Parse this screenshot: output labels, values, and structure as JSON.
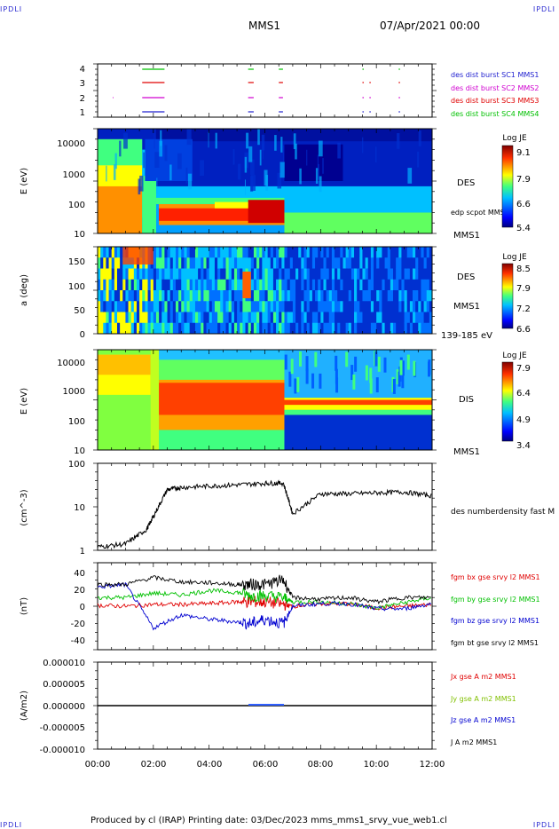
{
  "corners": {
    "tl": "IPDLI",
    "tr": "IPDLI",
    "bl": "IPDLI",
    "br": "IPDLI"
  },
  "header": {
    "spacecraft": "MMS1",
    "date": "07/Apr/2021 00:00"
  },
  "footer": "Produced by cl (IRAP)   Printing date: 03/Dec/2023   mms_mms1_srvy_vue_web1.cl",
  "colors": {
    "red": "#e00000",
    "green": "#00c000",
    "blue": "#0000d0",
    "magenta": "#d000d0",
    "black": "#000000"
  },
  "time_ticks": [
    "00:00",
    "02:00",
    "04:00",
    "06:00",
    "08:00",
    "10:00",
    "12:00"
  ],
  "panels": {
    "burst": {
      "yticks": [
        "4",
        "3",
        "2",
        "1"
      ],
      "legend": [
        {
          "text": "des dist burst SC1 MMS1",
          "color": "#2020d0"
        },
        {
          "text": "des dist burst SC2 MMS2",
          "color": "#d000d0"
        },
        {
          "text": "des dist burst SC3 MMS3",
          "color": "#e00000"
        },
        {
          "text": "des dist burst SC4 MMS4",
          "color": "#00c000"
        }
      ]
    },
    "des_energy": {
      "ylabel": "E (eV)",
      "yticks": [
        "10000",
        "1000",
        "100",
        "10"
      ],
      "label1": "DES",
      "label2": "edp scpot MMS1",
      "label3": "MMS1",
      "cbar_title": "Log JE",
      "cbar_ticks": [
        "9.1",
        "7.9",
        "6.6",
        "5.4"
      ]
    },
    "des_pitch": {
      "ylabel": "a (deg)",
      "yticks": [
        "150",
        "100",
        "50",
        "0"
      ],
      "label1": "DES",
      "label2": "MMS1",
      "label3": "139-185 eV",
      "cbar_title": "Log JE",
      "cbar_ticks": [
        "8.5",
        "7.9",
        "7.2",
        "6.6"
      ]
    },
    "dis_energy": {
      "ylabel": "E (eV)",
      "yticks": [
        "10000",
        "1000",
        "100",
        "10"
      ],
      "label1": "DIS",
      "label3": "MMS1",
      "cbar_title": "Log JE",
      "cbar_ticks": [
        "7.9",
        "6.4",
        "4.9",
        "3.4"
      ]
    },
    "density": {
      "ylabel": "(cm^-3)",
      "yticks": [
        "100",
        "10",
        "1"
      ],
      "label": "des numberdensity fast M"
    },
    "bfield": {
      "ylabel": "(nT)",
      "yticks": [
        "40",
        "20",
        "0",
        "-20",
        "-40"
      ],
      "legend": [
        {
          "text": "fgm bx gse srvy l2 MMS1",
          "color": "#e00000"
        },
        {
          "text": "fgm by gse srvy l2 MMS1",
          "color": "#00c000"
        },
        {
          "text": "fgm bz gse srvy l2 MMS1",
          "color": "#0000d0"
        },
        {
          "text": "fgm bt gse srvy l2 MMS1",
          "color": "#000000"
        }
      ]
    },
    "current": {
      "ylabel": "(A/m2)",
      "yticks": [
        "0.000010",
        "0.000005",
        "0.000000",
        "-0.000005",
        "-0.000010"
      ],
      "legend": [
        {
          "text": "Jx gse A m2 MMS1",
          "color": "#e00000"
        },
        {
          "text": "Jy gse A m2 MMS1",
          "color": "#80c000"
        },
        {
          "text": "Jz gse A m2 MMS1",
          "color": "#0000d0"
        },
        {
          "text": "J A m2 MMS1",
          "color": "#000000"
        }
      ]
    }
  },
  "chart_data": [
    {
      "type": "line",
      "title": "",
      "xlabel": "",
      "ylabel": "(cm^-3)",
      "yscale": "log",
      "ylim": [
        1,
        100
      ],
      "x": [
        "00:00",
        "01:00",
        "01:45",
        "02:00",
        "02:30",
        "03:00",
        "04:00",
        "05:00",
        "06:00",
        "06:40",
        "07:00",
        "08:00",
        "09:00",
        "10:00",
        "11:00",
        "12:00"
      ],
      "series": [
        {
          "name": "des numberdensity fast M",
          "values": [
            1.2,
            1.4,
            3,
            6,
            25,
            28,
            30,
            32,
            35,
            35,
            7,
            20,
            20,
            21,
            22,
            18
          ]
        }
      ]
    },
    {
      "type": "line",
      "title": "",
      "xlabel": "",
      "ylabel": "(nT)",
      "ylim": [
        -50,
        50
      ],
      "x": [
        "00:00",
        "01:00",
        "02:00",
        "03:00",
        "04:00",
        "05:00",
        "05:30",
        "06:00",
        "06:40",
        "07:00",
        "08:00",
        "09:00",
        "10:00",
        "11:00",
        "12:00"
      ],
      "series": [
        {
          "name": "fgm bx gse srvy l2 MMS1",
          "values": [
            1,
            0,
            2,
            2,
            3,
            5,
            5,
            5,
            2,
            0,
            3,
            3,
            -2,
            0,
            2
          ]
        },
        {
          "name": "fgm by gse srvy l2 MMS1",
          "values": [
            10,
            10,
            15,
            13,
            18,
            16,
            12,
            12,
            10,
            5,
            5,
            3,
            -2,
            4,
            10
          ]
        },
        {
          "name": "fgm bz gse srvy l2 MMS1",
          "values": [
            22,
            25,
            -25,
            -10,
            -15,
            -18,
            -20,
            -15,
            -20,
            0,
            3,
            3,
            -3,
            -3,
            3
          ]
        },
        {
          "name": "fgm bt gse srvy l2 MMS1",
          "values": [
            25,
            25,
            33,
            28,
            27,
            25,
            25,
            25,
            30,
            10,
            8,
            10,
            5,
            10,
            10
          ]
        }
      ]
    },
    {
      "type": "line",
      "title": "",
      "xlabel": "",
      "ylabel": "(A/m2)",
      "ylim": [
        -1e-05,
        1e-05
      ],
      "x": [
        "00:00",
        "06:00",
        "12:00"
      ],
      "series": [
        {
          "name": "J A m2 MMS1",
          "values": [
            0,
            0,
            0
          ]
        }
      ]
    }
  ]
}
